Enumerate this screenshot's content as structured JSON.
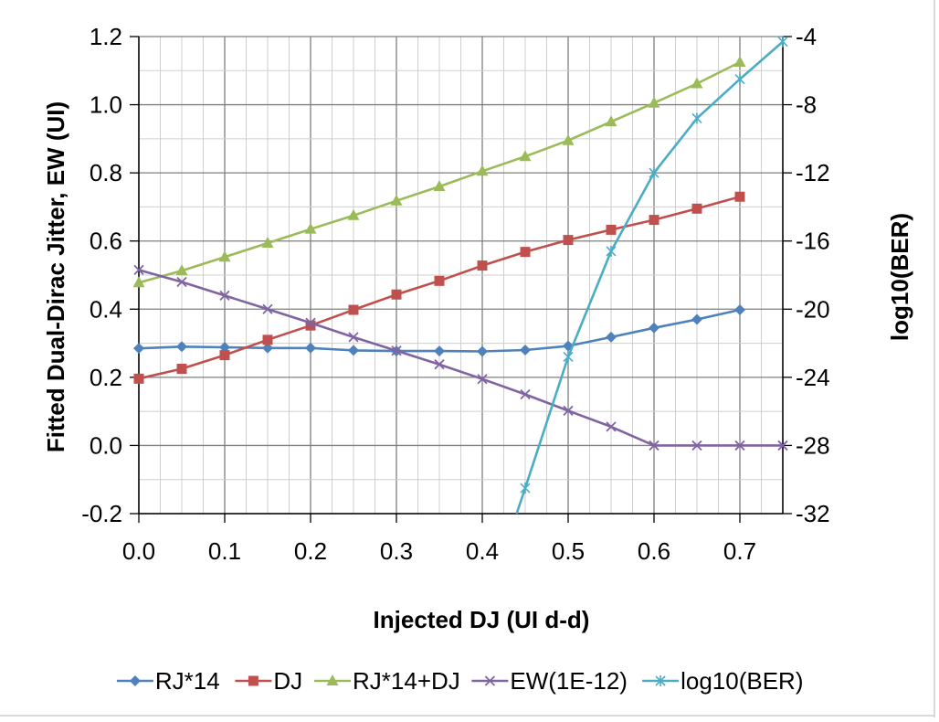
{
  "chart_data": {
    "type": "line",
    "xlabel": "Injected DJ (UI d-d)",
    "ylabel": "Fitted Dual-Dirac Jitter, EW (UI)",
    "y2label": "log10(BER)",
    "xlim": [
      0.0,
      0.75
    ],
    "ylim": [
      -0.2,
      1.2
    ],
    "y2lim": [
      -32,
      -4
    ],
    "x_ticks": [
      "0.0",
      "0.1",
      "0.2",
      "0.3",
      "0.4",
      "0.5",
      "0.6",
      "0.7"
    ],
    "x_tick_values": [
      0.0,
      0.1,
      0.2,
      0.3,
      0.4,
      0.5,
      0.6,
      0.7
    ],
    "y_ticks": [
      "-0.2",
      "0.0",
      "0.2",
      "0.4",
      "0.6",
      "0.8",
      "1.0",
      "1.2"
    ],
    "y_tick_values": [
      -0.2,
      0.0,
      0.2,
      0.4,
      0.6,
      0.8,
      1.0,
      1.2
    ],
    "y2_ticks": [
      "-32",
      "-28",
      "-24",
      "-20",
      "-16",
      "-12",
      "-8",
      "-4"
    ],
    "y2_tick_values": [
      -32,
      -28,
      -24,
      -20,
      -16,
      -12,
      -8,
      -4
    ],
    "grid": true,
    "legend_position": "bottom",
    "series": [
      {
        "name": "RJ*14",
        "color": "#4F81BD",
        "marker": "diamond",
        "axis": "left",
        "x": [
          0.0,
          0.05,
          0.1,
          0.15,
          0.2,
          0.25,
          0.3,
          0.35,
          0.4,
          0.45,
          0.5,
          0.55,
          0.6,
          0.65,
          0.7
        ],
        "y": [
          0.285,
          0.29,
          0.288,
          0.286,
          0.286,
          0.279,
          0.277,
          0.277,
          0.276,
          0.28,
          0.292,
          0.318,
          0.345,
          0.37,
          0.398
        ]
      },
      {
        "name": "DJ",
        "color": "#C0504D",
        "marker": "square",
        "axis": "left",
        "x": [
          0.0,
          0.05,
          0.1,
          0.15,
          0.2,
          0.25,
          0.3,
          0.35,
          0.4,
          0.45,
          0.5,
          0.55,
          0.6,
          0.65,
          0.7
        ],
        "y": [
          0.196,
          0.225,
          0.265,
          0.31,
          0.352,
          0.398,
          0.443,
          0.483,
          0.528,
          0.568,
          0.603,
          0.633,
          0.662,
          0.695,
          0.73
        ]
      },
      {
        "name": "RJ*14+DJ",
        "color": "#9BBB59",
        "marker": "triangle",
        "axis": "left",
        "x": [
          0.0,
          0.05,
          0.1,
          0.15,
          0.2,
          0.25,
          0.3,
          0.35,
          0.4,
          0.45,
          0.5,
          0.55,
          0.6,
          0.65,
          0.7
        ],
        "y": [
          0.478,
          0.513,
          0.553,
          0.594,
          0.635,
          0.675,
          0.718,
          0.76,
          0.805,
          0.848,
          0.895,
          0.95,
          1.005,
          1.062,
          1.125
        ]
      },
      {
        "name": "EW(1E-12)",
        "color": "#8064A2",
        "marker": "x",
        "axis": "left",
        "x": [
          0.0,
          0.05,
          0.1,
          0.15,
          0.2,
          0.25,
          0.3,
          0.35,
          0.4,
          0.45,
          0.5,
          0.55,
          0.6,
          0.65,
          0.7,
          0.75
        ],
        "y": [
          0.515,
          0.48,
          0.44,
          0.4,
          0.36,
          0.318,
          0.278,
          0.238,
          0.195,
          0.15,
          0.102,
          0.055,
          0.0,
          0.0,
          0.0,
          0.0
        ]
      },
      {
        "name": "log10(BER)",
        "color": "#4BACC6",
        "marker": "star",
        "axis": "right",
        "x": [
          0.44,
          0.45,
          0.5,
          0.55,
          0.6,
          0.65,
          0.7,
          0.75
        ],
        "y": [
          -32.0,
          -30.5,
          -22.8,
          -16.6,
          -12.0,
          -8.8,
          -6.5,
          -4.3
        ],
        "markers_at": [
          0.45,
          0.5,
          0.55,
          0.6,
          0.65,
          0.7,
          0.75
        ]
      }
    ]
  }
}
